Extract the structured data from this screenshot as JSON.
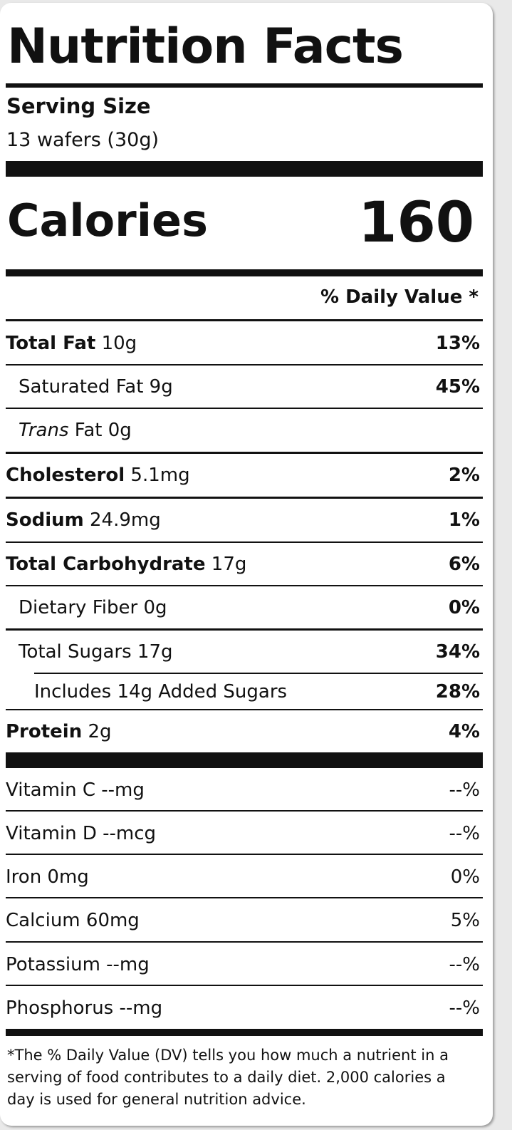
{
  "title": "Nutrition Facts",
  "serving": {
    "label": "Serving Size",
    "value": "13 wafers (30g)"
  },
  "calories": {
    "label": "Calories",
    "value": "160"
  },
  "daily_value_header": "% Daily Value *",
  "nutrients": [
    {
      "name": "Total Fat",
      "amount": "10g",
      "dv": "13%"
    },
    {
      "name": "Saturated Fat",
      "amount": "9g",
      "dv": "45%"
    },
    {
      "name_italic": "Trans",
      "name": "Fat",
      "amount": "0g",
      "dv": ""
    },
    {
      "name": "Cholesterol",
      "amount": "5.1mg",
      "dv": "2%"
    },
    {
      "name": "Sodium",
      "amount": "24.9mg",
      "dv": "1%"
    },
    {
      "name": "Total Carbohydrate",
      "amount": "17g",
      "dv": "6%"
    },
    {
      "name": "Dietary Fiber",
      "amount": "0g",
      "dv": "0%"
    },
    {
      "name": "Total Sugars",
      "amount": "17g",
      "dv": "34%"
    },
    {
      "name": "Includes 14g Added Sugars",
      "dv": "28%"
    },
    {
      "name": "Protein",
      "amount": "2g",
      "dv": "4%"
    }
  ],
  "vitamins": [
    {
      "name": "Vitamin C --mg",
      "dv": "--%"
    },
    {
      "name": "Vitamin D --mcg",
      "dv": "--%"
    },
    {
      "name": "Iron 0mg",
      "dv": "0%"
    },
    {
      "name": "Calcium 60mg",
      "dv": "5%"
    },
    {
      "name": "Potassium --mg",
      "dv": "--%"
    },
    {
      "name": "Phosphorus --mg",
      "dv": "--%"
    }
  ],
  "footnote": "*The % Daily Value (DV) tells you how much a nutrient in a serving of food contributes to a daily diet. 2,000 calories a day is used for general nutrition advice."
}
